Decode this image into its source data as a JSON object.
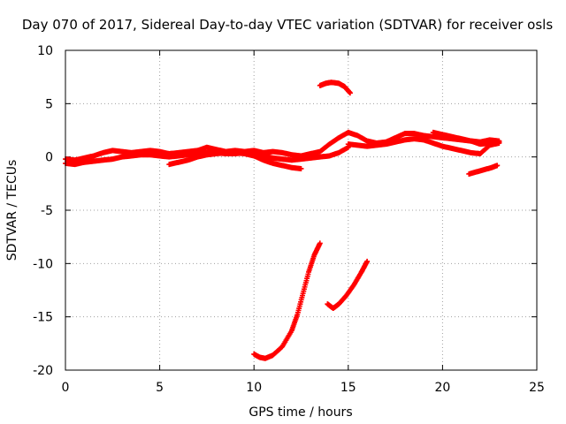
{
  "chart_data": {
    "type": "scatter",
    "title": "Day 070 of 2017, Sidereal Day-to-day VTEC variation (SDTVAR) for receiver osls",
    "xlabel": "GPS time / hours",
    "ylabel": "SDTVAR / TECUs",
    "xlim": [
      0,
      25
    ],
    "ylim": [
      -20,
      10
    ],
    "xticks": [
      0,
      5,
      10,
      15,
      20,
      25
    ],
    "yticks": [
      -20,
      -15,
      -10,
      -5,
      0,
      5,
      10
    ],
    "xtick_labels": [
      "0",
      "5",
      "10",
      "15",
      "20",
      "25"
    ],
    "ytick_labels": [
      "-20",
      "-15",
      "-10",
      "-5",
      "0",
      "5",
      "10"
    ],
    "grid": true,
    "marker": "+",
    "color": "#ff0000",
    "series": [
      {
        "name": "track-main-low",
        "x": [
          0,
          0.5,
          1,
          1.5,
          2,
          2.5,
          3,
          3.5,
          4,
          4.5,
          5,
          5.5,
          6,
          6.5,
          7,
          7.5,
          8,
          8.5,
          9,
          9.5,
          10,
          10.5,
          11,
          11.5,
          12,
          12.5,
          13,
          13.5,
          14,
          14.5,
          15
        ],
        "y": [
          -0.6,
          -0.7,
          -0.5,
          -0.4,
          -0.3,
          -0.2,
          0,
          0.1,
          0.2,
          0.2,
          0.1,
          0,
          0.1,
          0.2,
          0.3,
          0.4,
          0.4,
          0.3,
          0.3,
          0.4,
          0.3,
          0.1,
          -0.1,
          -0.2,
          -0.3,
          -0.2,
          -0.1,
          0,
          0.1,
          0.4,
          0.9
        ]
      },
      {
        "name": "track-main-high",
        "x": [
          0,
          0.5,
          1,
          1.5,
          2,
          2.5,
          3,
          3.5,
          4,
          4.5,
          5,
          5.5,
          6,
          6.5,
          7,
          7.5,
          8,
          8.5,
          9,
          9.5,
          10,
          10.5,
          11,
          11.5,
          12,
          12.5,
          13,
          13.5,
          14,
          14.5,
          15
        ],
        "y": [
          -0.2,
          -0.3,
          -0.1,
          0.1,
          0.4,
          0.6,
          0.5,
          0.4,
          0.5,
          0.6,
          0.5,
          0.3,
          0.4,
          0.5,
          0.6,
          0.9,
          0.7,
          0.5,
          0.6,
          0.5,
          0.6,
          0.4,
          0.5,
          0.4,
          0.2,
          0.1,
          0.3,
          0.5,
          1.2,
          1.8,
          2.3
        ]
      },
      {
        "name": "track-dip",
        "x": [
          5.5,
          6,
          6.5,
          7,
          7.5,
          8,
          8.5,
          9,
          9.5,
          10,
          10.5,
          11,
          11.5,
          12,
          12.5
        ],
        "y": [
          -0.7,
          -0.5,
          -0.3,
          0,
          0.2,
          0.3,
          0.4,
          0.4,
          0.3,
          0.1,
          -0.3,
          -0.6,
          -0.8,
          -1.0,
          -1.1
        ]
      },
      {
        "name": "track-late-a",
        "x": [
          15,
          15.5,
          16,
          16.5,
          17,
          17.5,
          18,
          18.5,
          19,
          19.5,
          20,
          20.5,
          21,
          21.5,
          22,
          22.5,
          23
        ],
        "y": [
          2.3,
          2.0,
          1.5,
          1.3,
          1.4,
          1.8,
          2.2,
          2.2,
          2.0,
          1.9,
          1.8,
          1.7,
          1.6,
          1.5,
          1.4,
          1.6,
          1.5
        ]
      },
      {
        "name": "track-late-b",
        "x": [
          15,
          15.5,
          16,
          16.5,
          17,
          17.5,
          18,
          18.5,
          19,
          19.5,
          20,
          20.5,
          21,
          21.5,
          22,
          22.5,
          23
        ],
        "y": [
          1.2,
          1.1,
          1.0,
          1.1,
          1.2,
          1.4,
          1.6,
          1.7,
          1.6,
          1.3,
          1.0,
          0.8,
          0.6,
          0.4,
          0.3,
          1.1,
          1.3
        ]
      },
      {
        "name": "track-late-c",
        "x": [
          19.5,
          20,
          20.5,
          21,
          21.5,
          22,
          22.5,
          23
        ],
        "y": [
          2.3,
          2.1,
          1.9,
          1.7,
          1.5,
          1.2,
          1.3,
          1.4
        ]
      },
      {
        "name": "track-segment-right",
        "x": [
          21.4,
          21.8,
          22.2,
          22.6,
          22.9
        ],
        "y": [
          -1.6,
          -1.4,
          -1.2,
          -1.0,
          -0.8
        ]
      },
      {
        "name": "track-high",
        "x": [
          13.5,
          13.8,
          14.1,
          14.5,
          14.8,
          15.1
        ],
        "y": [
          6.7,
          6.9,
          7.0,
          6.9,
          6.6,
          6.0
        ]
      },
      {
        "name": "track-deep-a",
        "x": [
          10,
          10.3,
          10.6,
          11,
          11.5,
          12,
          12.3,
          12.6,
          12.9,
          13.2,
          13.5
        ],
        "y": [
          -18.5,
          -18.8,
          -18.9,
          -18.6,
          -17.8,
          -16.3,
          -14.8,
          -12.8,
          -10.8,
          -9.2,
          -8.1
        ]
      },
      {
        "name": "track-deep-b",
        "x": [
          13.9,
          14.2,
          14.5,
          14.9,
          15.3,
          15.7,
          16
        ],
        "y": [
          -13.8,
          -14.2,
          -13.8,
          -13.0,
          -12.0,
          -10.8,
          -9.8
        ]
      }
    ]
  }
}
